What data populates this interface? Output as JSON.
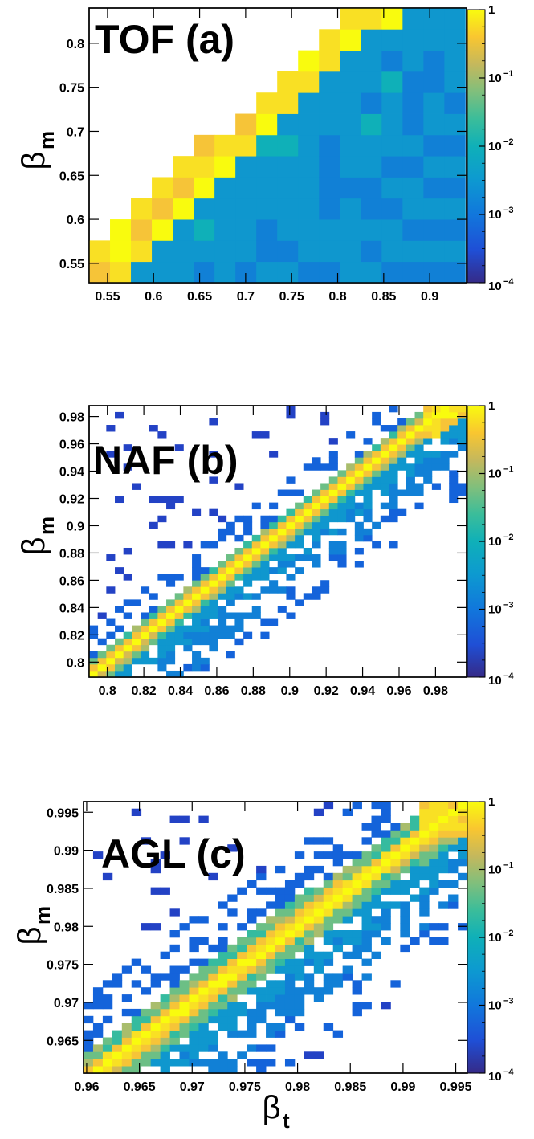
{
  "chart_data": [
    {
      "type": "heatmap",
      "title": "TOF (a)",
      "ylabel": "β",
      "ylabel_sub": "m",
      "xlabel": "",
      "xlim": [
        0.53,
        0.94
      ],
      "ylim": [
        0.528,
        0.84
      ],
      "xticks": [
        "0.55",
        "0.6",
        "0.65",
        "0.7",
        "0.75",
        "0.8",
        "0.85",
        "0.9"
      ],
      "yticks": [
        "0.55",
        "0.6",
        "0.65",
        "0.7",
        "0.75",
        "0.8"
      ],
      "colorbar": {
        "scale": "log",
        "range": [
          0.0001,
          1
        ],
        "labels": [
          "1",
          "10",
          "10",
          "10",
          "10"
        ],
        "exponents": [
          "",
          "−1",
          "−2",
          "−3",
          "−4"
        ]
      },
      "diagonal_width": 0.03,
      "cells": {
        "x0": 0.53,
        "y0": 0.528,
        "nx": 18,
        "ny": 13,
        "dx": 0.0227,
        "dy": 0.024
      }
    },
    {
      "type": "heatmap",
      "title": "NAF (b)",
      "ylabel": "β",
      "ylabel_sub": "m",
      "xlabel": "",
      "xlim": [
        0.79,
        0.997
      ],
      "ylim": [
        0.789,
        0.988
      ],
      "xticks": [
        "0.8",
        "0.82",
        "0.84",
        "0.86",
        "0.88",
        "0.9",
        "0.92",
        "0.94",
        "0.96",
        "0.98"
      ],
      "yticks": [
        "0.8",
        "0.82",
        "0.84",
        "0.86",
        "0.88",
        "0.9",
        "0.92",
        "0.94",
        "0.96",
        "0.98"
      ],
      "colorbar": {
        "scale": "log",
        "range": [
          0.0001,
          1
        ],
        "labels": [
          "1",
          "10",
          "10",
          "10",
          "10"
        ],
        "exponents": [
          "",
          "−1",
          "−2",
          "−3",
          "−4"
        ]
      },
      "diagonal_width": 0.006,
      "cells": {
        "x0": 0.79,
        "y0": 0.789,
        "nx": 44,
        "ny": 42,
        "dx": 0.0047,
        "dy": 0.00474
      }
    },
    {
      "type": "heatmap",
      "title": "AGL (c)",
      "ylabel": "β",
      "ylabel_sub": "m",
      "xlabel": "β",
      "xlabel_sub": "t",
      "xlim": [
        0.9597,
        0.9961
      ],
      "ylim": [
        0.9607,
        0.9964
      ],
      "xticks": [
        "0.96",
        "0.965",
        "0.97",
        "0.975",
        "0.98",
        "0.985",
        "0.99",
        "0.995"
      ],
      "yticks": [
        "0.965",
        "0.97",
        "0.975",
        "0.98",
        "0.985",
        "0.99",
        "0.995"
      ],
      "colorbar": {
        "scale": "log",
        "range": [
          0.0001,
          1
        ],
        "labels": [
          "1",
          "10",
          "10",
          "10",
          "10"
        ],
        "exponents": [
          "",
          "−1",
          "−2",
          "−3",
          "−4"
        ]
      },
      "diagonal_width": 0.0018,
      "cells": {
        "x0": 0.9597,
        "y0": 0.9607,
        "nx": 40,
        "ny": 38,
        "dx": 0.00091,
        "dy": 0.00094
      }
    }
  ]
}
